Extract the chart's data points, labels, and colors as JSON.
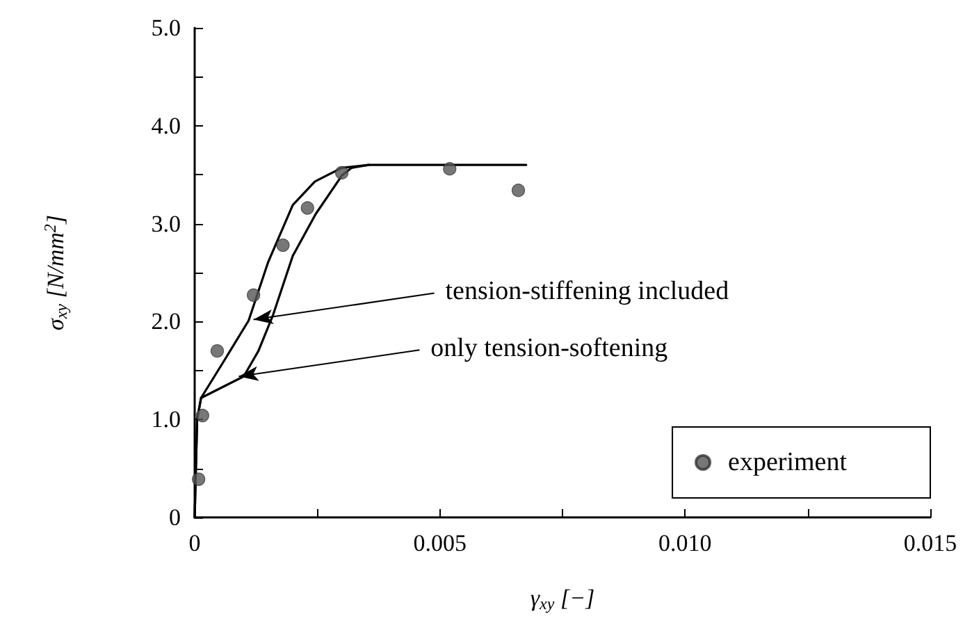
{
  "chart_data": {
    "type": "scatter",
    "xlabel": "γ$_{xy}$ [−]",
    "ylabel": "σ$_{xy}$ [N/mm$^{2}$]",
    "xlim": [
      0,
      0.015
    ],
    "ylim": [
      0,
      5
    ],
    "xticks": [
      0,
      {
        "value": 0.0025,
        "label": null
      },
      0.005,
      {
        "value": 0.0075,
        "label": null
      },
      {
        "value": 0.01,
        "label": "0.010"
      },
      {
        "value": 0.0125,
        "label": null
      },
      0.015
    ],
    "yticks": [
      0,
      {
        "value": 0.5,
        "label": null
      },
      {
        "value": 1,
        "label": "1.0"
      },
      {
        "value": 1.5,
        "label": null
      },
      {
        "value": 2,
        "label": "2.0"
      },
      {
        "value": 2.5,
        "label": null
      },
      {
        "value": 3,
        "label": "3.0"
      },
      {
        "value": 3.5,
        "label": null
      },
      {
        "value": 4,
        "label": "4.0"
      },
      {
        "value": 4.5,
        "label": null
      },
      {
        "value": 5,
        "label": "5.0"
      }
    ],
    "series": [
      {
        "name": "experiment",
        "marker": "circle",
        "color": "#555555",
        "x": [
          8e-05,
          0.00016,
          0.00046,
          0.0012,
          0.0018,
          0.0023,
          0.003,
          0.0052,
          0.0066
        ],
        "values": [
          0.39,
          1.04,
          1.7,
          2.27,
          2.78,
          3.16,
          3.52,
          3.56,
          3.34
        ]
      },
      {
        "type": "line",
        "marker": "none",
        "color": "#000000",
        "line_style": "solid",
        "x": [
          0,
          5e-05,
          0.00013,
          0.0006,
          0.0011,
          0.0015,
          0.002,
          0.00245,
          0.003,
          0.00355,
          0.00676
        ],
        "values": [
          0,
          1.0,
          1.22,
          1.6,
          2.01,
          2.61,
          3.19,
          3.43,
          3.57,
          3.6,
          3.6
        ]
      },
      {
        "type": "line",
        "marker": "none",
        "color": "#000000",
        "line_style": "solid",
        "x": [
          0,
          5e-05,
          0.00013,
          0.001,
          0.0013,
          0.0016,
          0.002,
          0.00247,
          0.003,
          0.0032,
          0.00355
        ],
        "values": [
          0,
          1.0,
          1.22,
          1.44,
          1.7,
          2.07,
          2.67,
          3.1,
          3.49,
          3.57,
          3.6
        ]
      }
    ],
    "legend": "bottom right",
    "grid": false,
    "annotations": [
      {
        "text": "tension-stiffening included",
        "x": 0.0012,
        "y": 2.02
      },
      {
        "text": "only tension-softening",
        "x": 0.0009,
        "y": 1.44
      }
    ]
  }
}
